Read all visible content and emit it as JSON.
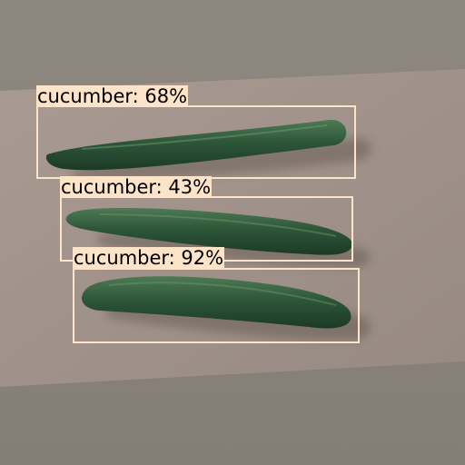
{
  "detections": [
    {
      "label": "cucumber: 68%",
      "class": "cucumber",
      "score": 0.68
    },
    {
      "label": "cucumber: 43%",
      "class": "cucumber",
      "score": 0.43
    },
    {
      "label": "cucumber: 92%",
      "class": "cucumber",
      "score": 0.92
    }
  ],
  "colors": {
    "box": "#fde3c8",
    "table": "#a1938c",
    "background": "#8f8a84",
    "cucumber": "#2f5a3c"
  }
}
